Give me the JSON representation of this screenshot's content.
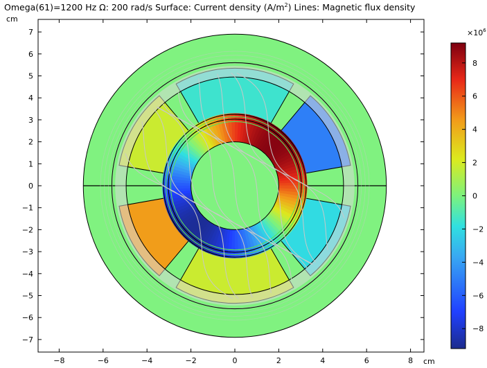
{
  "chart_data": {
    "type": "heatmap",
    "title_parts": {
      "pre": "Omega(61)=1200 Hz ",
      "symbol": "Ω",
      "mid": ": 200 rad/s Surface: Current density (A/m",
      "sup": "2",
      "post": ") Lines: Magnetic flux density"
    },
    "x_unit": "cm",
    "y_unit": "cm",
    "xlim": [
      -9,
      9
    ],
    "ylim": [
      -7.5,
      7.5
    ],
    "x_ticks": [
      -8,
      -6,
      -4,
      -2,
      0,
      2,
      4,
      6,
      8
    ],
    "y_ticks": [
      -7,
      -6,
      -5,
      -4,
      -3,
      -2,
      -1,
      0,
      1,
      2,
      3,
      4,
      5,
      6,
      7
    ],
    "colorbar": {
      "multiplier": "×10",
      "exponent": "6",
      "range": [
        -9.2,
        9.2
      ],
      "ticks": [
        8,
        6,
        4,
        2,
        0,
        -2,
        -4,
        -6,
        -8
      ],
      "colormap": "rainbow"
    },
    "geometry": {
      "outer_housing_radius": 6.9,
      "stator_inner_radius": 5.6,
      "airgap_ring_radius": 5.2,
      "rotor_outer_radius": 3.3,
      "rotor_inner_radius": 2.0
    },
    "regions": [
      {
        "name": "coil-top",
        "angle_range": [
          60,
          120
        ],
        "value": -1.5
      },
      {
        "name": "coil-upper-right",
        "angle_range": [
          10,
          50
        ],
        "value": -5.0
      },
      {
        "name": "coil-lower-right",
        "angle_range": [
          -50,
          -10
        ],
        "value": -2.0
      },
      {
        "name": "coil-bottom",
        "angle_range": [
          -120,
          -60
        ],
        "value": 1.8
      },
      {
        "name": "coil-lower-left",
        "angle_range": [
          -170,
          -130
        ],
        "value": 4.5
      },
      {
        "name": "coil-upper-left",
        "angle_range": [
          130,
          170
        ],
        "value": 1.8
      }
    ],
    "rotor_band": {
      "peak_angle_deg": 45,
      "amplitude": 9.0
    },
    "colors": {
      "background": "#80f280",
      "boundary": "#000000",
      "field_lines": "#c8c8c8"
    }
  }
}
